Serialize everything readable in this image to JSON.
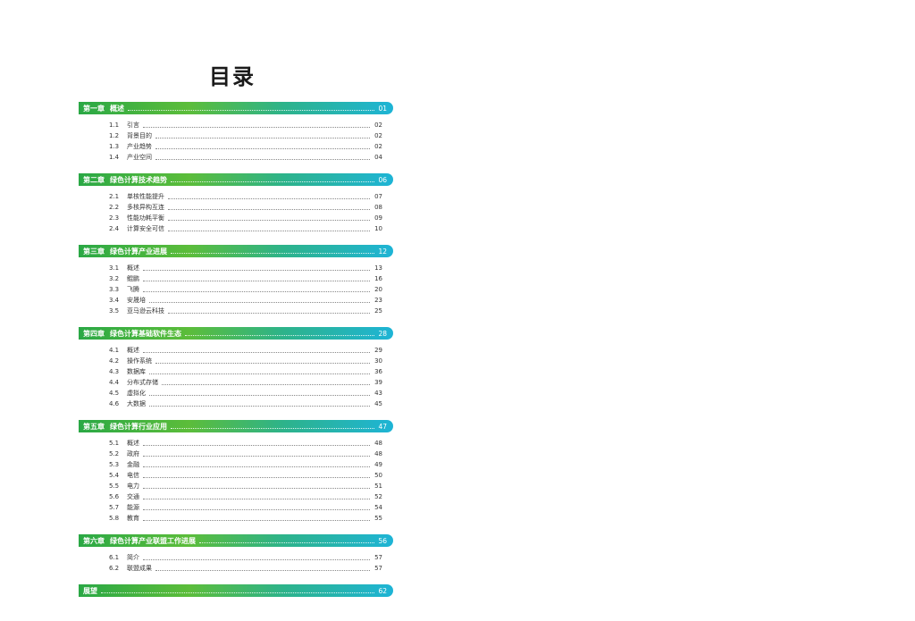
{
  "page_title": "目录",
  "chapters": [
    {
      "num": "第一章",
      "title": "概述",
      "page": "01",
      "sections": [
        {
          "num": "1.1",
          "title": "引言",
          "page": "02"
        },
        {
          "num": "1.2",
          "title": "背景目的",
          "page": "02"
        },
        {
          "num": "1.3",
          "title": "产业趋势",
          "page": "02"
        },
        {
          "num": "1.4",
          "title": "产业空间",
          "page": "04"
        }
      ]
    },
    {
      "num": "第二章",
      "title": "绿色计算技术趋势",
      "page": "06",
      "sections": [
        {
          "num": "2.1",
          "title": "单核性能提升",
          "page": "07"
        },
        {
          "num": "2.2",
          "title": "多核异构互连",
          "page": "08"
        },
        {
          "num": "2.3",
          "title": "性能功耗平衡",
          "page": "09"
        },
        {
          "num": "2.4",
          "title": "计算安全可信",
          "page": "10"
        }
      ]
    },
    {
      "num": "第三章",
      "title": "绿色计算产业进展",
      "page": "12",
      "sections": [
        {
          "num": "3.1",
          "title": "概述",
          "page": "13"
        },
        {
          "num": "3.2",
          "title": "鲲鹏",
          "page": "16"
        },
        {
          "num": "3.3",
          "title": "飞腾",
          "page": "20"
        },
        {
          "num": "3.4",
          "title": "安晟培",
          "page": "23"
        },
        {
          "num": "3.5",
          "title": "亚马逊云科技",
          "page": "25"
        }
      ]
    },
    {
      "num": "第四章",
      "title": "绿色计算基础软件生态",
      "page": "28",
      "sections": [
        {
          "num": "4.1",
          "title": "概述",
          "page": "29"
        },
        {
          "num": "4.2",
          "title": "操作系统",
          "page": "30"
        },
        {
          "num": "4.3",
          "title": "数据库",
          "page": "36"
        },
        {
          "num": "4.4",
          "title": "分布式存储",
          "page": "39"
        },
        {
          "num": "4.5",
          "title": "虚拟化",
          "page": "43"
        },
        {
          "num": "4.6",
          "title": "大数据",
          "page": "45"
        }
      ]
    },
    {
      "num": "第五章",
      "title": "绿色计算行业应用",
      "page": "47",
      "sections": [
        {
          "num": "5.1",
          "title": "概述",
          "page": "48"
        },
        {
          "num": "5.2",
          "title": "政府",
          "page": "48"
        },
        {
          "num": "5.3",
          "title": "金融",
          "page": "49"
        },
        {
          "num": "5.4",
          "title": "电信",
          "page": "50"
        },
        {
          "num": "5.5",
          "title": "电力",
          "page": "51"
        },
        {
          "num": "5.6",
          "title": "交通",
          "page": "52"
        },
        {
          "num": "5.7",
          "title": "能源",
          "page": "54"
        },
        {
          "num": "5.8",
          "title": "教育",
          "page": "55"
        }
      ]
    },
    {
      "num": "第六章",
      "title": "绿色计算产业联盟工作进展",
      "page": "56",
      "sections": [
        {
          "num": "6.1",
          "title": "简介",
          "page": "57"
        },
        {
          "num": "6.2",
          "title": "联盟成果",
          "page": "57"
        }
      ]
    },
    {
      "num": "",
      "title": "展望",
      "page": "62",
      "sections": []
    }
  ]
}
